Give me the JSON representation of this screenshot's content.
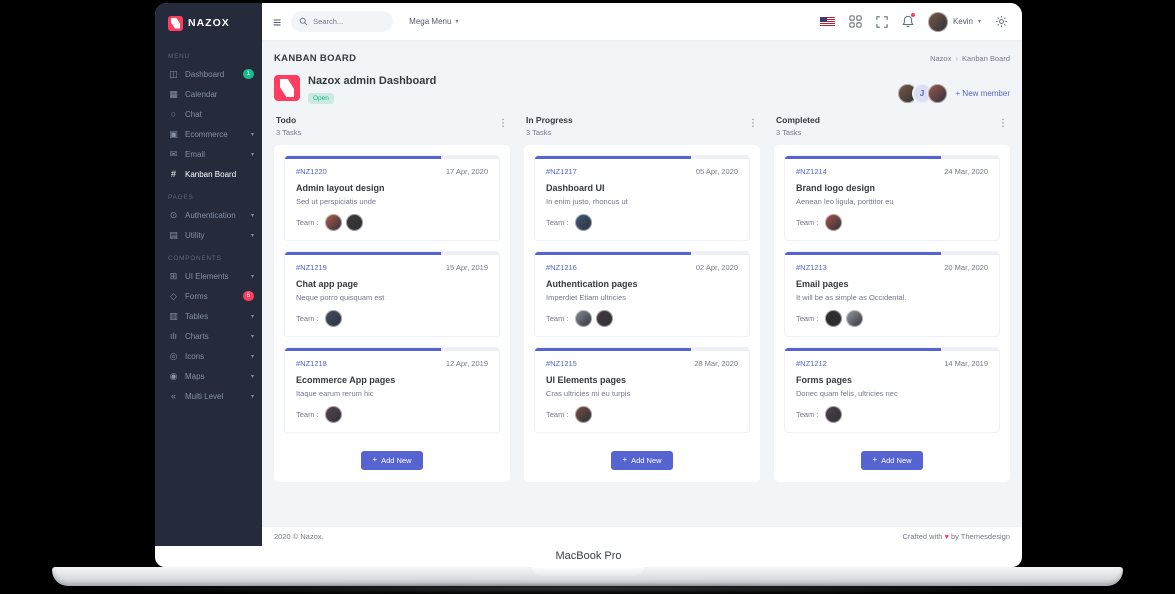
{
  "colors": {
    "primary": "#5664d2",
    "success": "#1cbb8c",
    "danger": "#ff3d60",
    "sidebar_bg": "#252b3b",
    "content_bg": "#f1f5f7"
  },
  "frame": {
    "device_label": "MacBook Pro"
  },
  "icons": {
    "hamburger": "≡",
    "caret_down": "▾",
    "dots": "⋮",
    "plus": "+",
    "heart": "♥",
    "breadcrumb_sep": "›"
  },
  "labels": {
    "team": "Team :",
    "add_new": "Add New"
  },
  "sidebar": {
    "logo_text": "NAZOX",
    "sections": [
      {
        "label": "MENU",
        "items": [
          {
            "label": "Dashboard",
            "icon": "dashboard-icon",
            "glyph": "◫",
            "badge": "1",
            "badge_color": "#1cbb8c"
          },
          {
            "label": "Calendar",
            "icon": "calendar-icon",
            "glyph": "▦"
          },
          {
            "label": "Chat",
            "icon": "chat-icon",
            "glyph": "○"
          },
          {
            "label": "Ecommerce",
            "icon": "ecommerce-icon",
            "glyph": "▣",
            "chevron": true
          },
          {
            "label": "Email",
            "icon": "email-icon",
            "glyph": "✉",
            "chevron": true
          },
          {
            "label": "Kanban Board",
            "icon": "kanban-icon",
            "glyph": "#",
            "active": true
          }
        ]
      },
      {
        "label": "PAGES",
        "items": [
          {
            "label": "Authentication",
            "icon": "authentication-icon",
            "glyph": "⊙",
            "chevron": true
          },
          {
            "label": "Utility",
            "icon": "utility-icon",
            "glyph": "▤",
            "chevron": true
          }
        ]
      },
      {
        "label": "COMPONENTS",
        "items": [
          {
            "label": "UI Elements",
            "icon": "ui-elements-icon",
            "glyph": "⊞",
            "chevron": true
          },
          {
            "label": "Forms",
            "icon": "forms-icon",
            "glyph": "◇",
            "badge": "6",
            "badge_color": "#ff3d60"
          },
          {
            "label": "Tables",
            "icon": "tables-icon",
            "glyph": "▥",
            "chevron": true
          },
          {
            "label": "Charts",
            "icon": "charts-icon",
            "glyph": "ılı",
            "chevron": true
          },
          {
            "label": "Icons",
            "icon": "icons-icon",
            "glyph": "◎",
            "chevron": true
          },
          {
            "label": "Maps",
            "icon": "maps-icon",
            "glyph": "◉",
            "chevron": true
          },
          {
            "label": "Multi Level",
            "icon": "multi-level-icon",
            "glyph": "«",
            "chevron": true
          }
        ]
      }
    ]
  },
  "topbar": {
    "search_placeholder": "Search...",
    "mega_menu_label": "Mega Menu",
    "user_name": "Kevin"
  },
  "page": {
    "title": "KANBAN BOARD",
    "breadcrumb": [
      "Nazox",
      "Kanban Board"
    ]
  },
  "board": {
    "title": "Nazox admin Dashboard",
    "status": "Open",
    "new_member": "+ New member",
    "team": [
      {
        "kind": "photo",
        "color": "#7d5a43"
      },
      {
        "kind": "initial",
        "initial": "J"
      },
      {
        "kind": "photo",
        "color": "#9a5b52"
      }
    ]
  },
  "columns": [
    {
      "name": "Todo",
      "count": "3 Tasks",
      "cards": [
        {
          "id": "#NZ1220",
          "date": "17 Apr, 2020",
          "title": "Admin layout design",
          "desc": "Sed ut perspiciatis unde",
          "progress": 73,
          "team": [
            "#b55e4f",
            "#3e3a36"
          ]
        },
        {
          "id": "#NZ1219",
          "date": "15 Apr, 2019",
          "title": "Chat app page",
          "desc": "Neque porro quisquam est",
          "progress": 73,
          "team": [
            "#44506b"
          ]
        },
        {
          "id": "#NZ1218",
          "date": "12 Apr, 2019",
          "title": "Ecommerce App pages",
          "desc": "Itaque earum rerum hic",
          "progress": 73,
          "team": [
            "#5d4653"
          ]
        }
      ]
    },
    {
      "name": "In Progress",
      "count": "3 Tasks",
      "cards": [
        {
          "id": "#NZ1217",
          "date": "05 Apr, 2020",
          "title": "Dashboard UI",
          "desc": "In enim justo, rhoncus ut",
          "progress": 73,
          "team": [
            "#3f5a7a"
          ]
        },
        {
          "id": "#NZ1216",
          "date": "02 Apr, 2020",
          "title": "Authentication pages",
          "desc": "Imperdiet Etiam ultricies",
          "progress": 73,
          "team": [
            "#8a8f98",
            "#4a3b40"
          ]
        },
        {
          "id": "#NZ1215",
          "date": "28 Mar, 2020",
          "title": "UI Elements pages",
          "desc": "Cras ultricies mi eu turpis",
          "progress": 73,
          "team": [
            "#7a4e44"
          ]
        }
      ]
    },
    {
      "name": "Completed",
      "count": "3 Tasks",
      "cards": [
        {
          "id": "#NZ1214",
          "date": "24 Mar, 2020",
          "title": "Brand logo design",
          "desc": "Aenean leo ligula, porttitor eu",
          "progress": 73,
          "team": [
            "#a8554f"
          ]
        },
        {
          "id": "#NZ1213",
          "date": "20 Mar, 2020",
          "title": "Email pages",
          "desc": "It will be as simple as Occidental.",
          "progress": 73,
          "team": [
            "#2f2a28",
            "#9aa0a6"
          ]
        },
        {
          "id": "#NZ1212",
          "date": "14 Mar, 2019",
          "title": "Forms pages",
          "desc": "Donec quam felis, ultricies nec",
          "progress": 73,
          "team": [
            "#53404a"
          ]
        }
      ]
    }
  ],
  "footer": {
    "left": "2020 © Nazox.",
    "right_prefix": "Crafted with",
    "right_suffix": "by Themesdesign"
  }
}
